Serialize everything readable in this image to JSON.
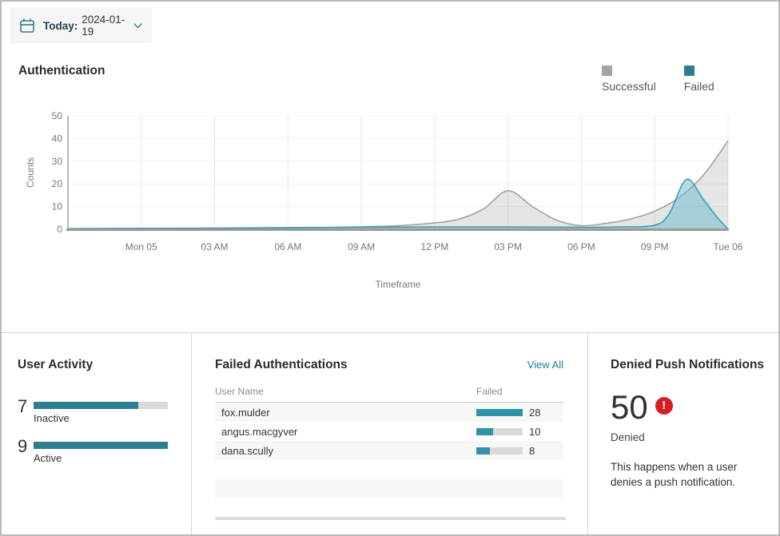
{
  "date_picker": {
    "label": "Today:",
    "date": "2024-01-19"
  },
  "authentication": {
    "title": "Authentication",
    "legend": [
      {
        "label": "Successful",
        "color": "#a3a3a3"
      },
      {
        "label": "Failed",
        "color": "#2d7e8f"
      }
    ],
    "chart_data": {
      "type": "area",
      "title": "Authentication",
      "xlabel": "Timeframe",
      "ylabel": "Counts",
      "ylim": [
        0,
        50
      ],
      "y_ticks": [
        0,
        10,
        20,
        30,
        40,
        50
      ],
      "x_range": [
        0,
        27
      ],
      "x_ticks": [
        {
          "h": 3,
          "label": "Mon 05"
        },
        {
          "h": 6,
          "label": "03 AM"
        },
        {
          "h": 9,
          "label": "06 AM"
        },
        {
          "h": 12,
          "label": "09 AM"
        },
        {
          "h": 15,
          "label": "12 PM"
        },
        {
          "h": 18,
          "label": "03 PM"
        },
        {
          "h": 21,
          "label": "06 PM"
        },
        {
          "h": 24,
          "label": "09 PM"
        },
        {
          "h": 27,
          "label": "Tue 06"
        }
      ],
      "grid": true,
      "legend_position": "top-right",
      "series": [
        {
          "name": "Successful",
          "stroke": "#9e9e9e",
          "fill": "rgba(160,160,160,0.28)",
          "points": [
            [
              0,
              0.2
            ],
            [
              1.5,
              0.3
            ],
            [
              3,
              0.4
            ],
            [
              4.5,
              0.4
            ],
            [
              6,
              0.5
            ],
            [
              7.5,
              0.6
            ],
            [
              9,
              0.7
            ],
            [
              10.5,
              0.8
            ],
            [
              12,
              1.1
            ],
            [
              13.5,
              1.6
            ],
            [
              15,
              2.8
            ],
            [
              16,
              4.5
            ],
            [
              17,
              9
            ],
            [
              18,
              17
            ],
            [
              19,
              10
            ],
            [
              20,
              4
            ],
            [
              21,
              1.6
            ],
            [
              22,
              2.6
            ],
            [
              23,
              4.5
            ],
            [
              24,
              8
            ],
            [
              25,
              14
            ],
            [
              26,
              24
            ],
            [
              27,
              39
            ]
          ]
        },
        {
          "name": "Failed",
          "stroke": "#2f9ab0",
          "fill": "rgba(104,186,203,0.5)",
          "points": [
            [
              0,
              0.3
            ],
            [
              3,
              0.4
            ],
            [
              6,
              0.5
            ],
            [
              9,
              0.7
            ],
            [
              12,
              0.9
            ],
            [
              15,
              1
            ],
            [
              18,
              1
            ],
            [
              21,
              0.9
            ],
            [
              22.5,
              1
            ],
            [
              24,
              1.8
            ],
            [
              24.6,
              7
            ],
            [
              25.3,
              22
            ],
            [
              26,
              13
            ],
            [
              26.5,
              6
            ],
            [
              27,
              0
            ]
          ]
        }
      ]
    }
  },
  "user_activity": {
    "title": "User Activity",
    "max": 9,
    "items": [
      {
        "count": 7,
        "label": "Inactive",
        "fraction": 0.778
      },
      {
        "count": 9,
        "label": "Active",
        "fraction": 1
      }
    ]
  },
  "failed_authentications": {
    "title": "Failed Authentications",
    "view_all": "View All",
    "columns": {
      "user": "User Name",
      "failed": "Failed"
    },
    "max": 28,
    "rows": [
      {
        "user": "fox.mulder",
        "failed": 28,
        "fraction": 1
      },
      {
        "user": "angus.macgyver",
        "failed": 10,
        "fraction": 0.36
      },
      {
        "user": "dana.scully",
        "failed": 8,
        "fraction": 0.29
      }
    ]
  },
  "denied_push": {
    "title": "Denied Push Notifications",
    "count": "50",
    "badge_color": "#da1b23",
    "label": "Denied",
    "description": "This happens when a user denies a push notification."
  }
}
